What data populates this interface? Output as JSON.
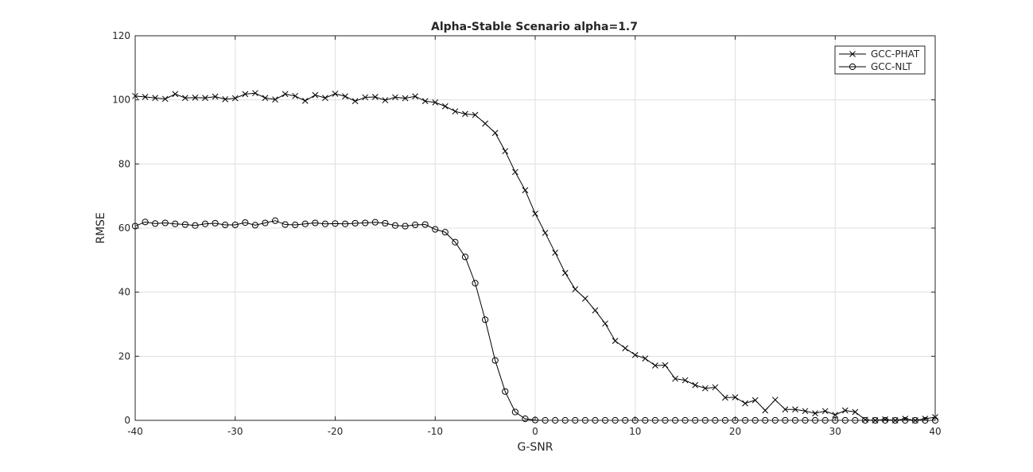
{
  "chart_data": {
    "type": "line",
    "title": "Alpha-Stable Scenario alpha=1.7",
    "xlabel": "G-SNR",
    "ylabel": "RMSE",
    "xlim": [
      -40,
      40
    ],
    "ylim": [
      0,
      120
    ],
    "xticks": [
      -40,
      -30,
      -20,
      -10,
      0,
      10,
      20,
      30,
      40
    ],
    "yticks": [
      0,
      20,
      40,
      60,
      80,
      100,
      120
    ],
    "grid": true,
    "legend_position": "top-right",
    "x": [
      -40,
      -39,
      -38,
      -37,
      -36,
      -35,
      -34,
      -33,
      -32,
      -31,
      -30,
      -29,
      -28,
      -27,
      -26,
      -25,
      -24,
      -23,
      -22,
      -21,
      -20,
      -19,
      -18,
      -17,
      -16,
      -15,
      -14,
      -13,
      -12,
      -11,
      -10,
      -9,
      -8,
      -7,
      -6,
      -5,
      -4,
      -3,
      -2,
      -1,
      0,
      1,
      2,
      3,
      4,
      5,
      6,
      7,
      8,
      9,
      10,
      11,
      12,
      13,
      14,
      15,
      16,
      17,
      18,
      19,
      20,
      21,
      22,
      23,
      24,
      25,
      26,
      27,
      28,
      29,
      30,
      31,
      32,
      33,
      34,
      35,
      36,
      37,
      38,
      39,
      40
    ],
    "series": [
      {
        "name": "GCC-PHAT",
        "marker": "x",
        "color": "#000000",
        "values": [
          101.2,
          100.9,
          100.6,
          100.3,
          101.8,
          100.6,
          100.7,
          100.6,
          101.0,
          100.2,
          100.5,
          101.8,
          102.1,
          100.6,
          100.1,
          101.8,
          101.2,
          99.7,
          101.5,
          100.6,
          101.9,
          101.1,
          99.6,
          100.8,
          100.9,
          99.9,
          100.8,
          100.5,
          101.1,
          99.6,
          99.2,
          98.0,
          96.4,
          95.6,
          95.3,
          92.6,
          89.7,
          84.0,
          77.5,
          71.8,
          64.5,
          58.5,
          52.3,
          46.0,
          40.9,
          38.0,
          34.3,
          30.2,
          24.8,
          22.5,
          20.4,
          19.3,
          17.1,
          17.2,
          13.0,
          12.5,
          11.0,
          10.0,
          10.3,
          7.1,
          7.2,
          5.3,
          6.3,
          3.1,
          6.4,
          3.4,
          3.4,
          2.9,
          2.2,
          2.9,
          1.7,
          3.1,
          2.6,
          0.2,
          0.0,
          0.3,
          0.0,
          0.5,
          0.0,
          0.5,
          1.0
        ]
      },
      {
        "name": "GCC-NLT",
        "marker": "o",
        "color": "#000000",
        "values": [
          60.6,
          61.9,
          61.4,
          61.6,
          61.3,
          61.1,
          60.8,
          61.3,
          61.5,
          61.0,
          61.0,
          61.7,
          60.9,
          61.6,
          62.3,
          61.1,
          61.0,
          61.3,
          61.6,
          61.3,
          61.4,
          61.3,
          61.5,
          61.6,
          61.8,
          61.5,
          60.8,
          60.6,
          61.0,
          61.1,
          59.6,
          58.7,
          55.6,
          51.0,
          42.8,
          31.4,
          18.7,
          9.0,
          2.6,
          0.5,
          0.1,
          0.0,
          0.0,
          0.0,
          0.0,
          0.0,
          0.0,
          0.0,
          0.0,
          0.0,
          0.0,
          0.0,
          0.0,
          0.0,
          0.0,
          0.0,
          0.0,
          0.0,
          0.0,
          0.0,
          0.0,
          0.0,
          0.0,
          0.0,
          0.0,
          0.0,
          0.0,
          0.0,
          0.0,
          0.0,
          0.0,
          0.0,
          0.0,
          0.0,
          0.0,
          0.0,
          0.0,
          0.0,
          0.0,
          0.0,
          0.0
        ]
      }
    ]
  }
}
